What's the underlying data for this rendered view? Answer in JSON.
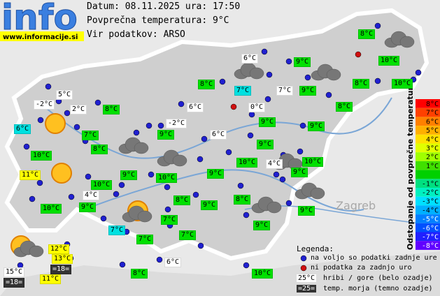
{
  "header": {
    "date_line": "Datum: 08.11.2025 ura: 17:50",
    "avg_line": "Povprečna temperatura: 9°C",
    "source_line": "Vir podatkov: ARSO"
  },
  "logo": {
    "text": "info",
    "url": "www.informacije.si"
  },
  "map_labels": [
    "Zagreb"
  ],
  "stations": [
    {
      "text": "8°C",
      "bg": "#00e000"
    },
    {
      "text": "6°C",
      "bg": "#ffffff"
    },
    {
      "text": "9°C",
      "bg": "#00e000"
    },
    {
      "text": "10°C",
      "bg": "#00e000"
    },
    {
      "text": "8°C",
      "bg": "#00e000"
    },
    {
      "text": "7°C",
      "bg": "#00e0e0"
    },
    {
      "text": "7°C",
      "bg": "#ffffff"
    },
    {
      "text": "9°C",
      "bg": "#00e000"
    },
    {
      "text": "8°C",
      "bg": "#00e000"
    },
    {
      "text": "10°C",
      "bg": "#00e000"
    },
    {
      "text": "5°C",
      "bg": "#ffffff"
    },
    {
      "text": "-2°C",
      "bg": "#ffffff"
    },
    {
      "text": "2°C",
      "bg": "#ffffff"
    },
    {
      "text": "8°C",
      "bg": "#00e000"
    },
    {
      "text": "6°C",
      "bg": "#ffffff"
    },
    {
      "text": "0°C",
      "bg": "#ffffff"
    },
    {
      "text": "8°C",
      "bg": "#00e000"
    },
    {
      "text": "6°C",
      "bg": "#00e0e0"
    },
    {
      "text": "-2°C",
      "bg": "#ffffff"
    },
    {
      "text": "9°C",
      "bg": "#00e000"
    },
    {
      "text": "9°C",
      "bg": "#00e000"
    },
    {
      "text": "7°C",
      "bg": "#00e000"
    },
    {
      "text": "9°C",
      "bg": "#00e000"
    },
    {
      "text": "6°C",
      "bg": "#ffffff"
    },
    {
      "text": "8°C",
      "bg": "#00e000"
    },
    {
      "text": "9°C",
      "bg": "#00e000"
    },
    {
      "text": "10°C",
      "bg": "#00e000"
    },
    {
      "text": "10°C",
      "bg": "#00e000"
    },
    {
      "text": "4°C",
      "bg": "#ffffff"
    },
    {
      "text": "10°C",
      "bg": "#00e000"
    },
    {
      "text": "11°C",
      "bg": "#ffff00"
    },
    {
      "text": "9°C",
      "bg": "#00e000"
    },
    {
      "text": "10°C",
      "bg": "#00e000"
    },
    {
      "text": "9°C",
      "bg": "#00e000"
    },
    {
      "text": "9°C",
      "bg": "#00e000"
    },
    {
      "text": "10°C",
      "bg": "#00e000"
    },
    {
      "text": "4°C",
      "bg": "#ffffff"
    },
    {
      "text": "8°C",
      "bg": "#00e000"
    },
    {
      "text": "8°C",
      "bg": "#00e000"
    },
    {
      "text": "10°C",
      "bg": "#00e000"
    },
    {
      "text": "9°C",
      "bg": "#00e000"
    },
    {
      "text": "9°C",
      "bg": "#00e000"
    },
    {
      "text": "9°C",
      "bg": "#00e000"
    },
    {
      "text": "7°C",
      "bg": "#00e000"
    },
    {
      "text": "7°C",
      "bg": "#00e0e0"
    },
    {
      "text": "7°C",
      "bg": "#00e000"
    },
    {
      "text": "7°C",
      "bg": "#00e000"
    },
    {
      "text": "9°C",
      "bg": "#00e000"
    },
    {
      "text": "12°C",
      "bg": "#ffff00"
    },
    {
      "text": "13°C",
      "bg": "#ffff00"
    },
    {
      "text": "=18=",
      "bg": "#333333"
    },
    {
      "text": "6°C",
      "bg": "#ffffff"
    },
    {
      "text": "15°C",
      "bg": "#ffffff"
    },
    {
      "text": "=18=",
      "bg": "#333333"
    },
    {
      "text": "11°C",
      "bg": "#ffff00"
    },
    {
      "text": "8°C",
      "bg": "#00e000"
    },
    {
      "text": "10°C",
      "bg": "#00e000"
    }
  ],
  "scale": {
    "title": "Odstopanje od povprečne temperature:",
    "steps": [
      {
        "label": "8°C",
        "color": "#ff0000"
      },
      {
        "label": "7°C",
        "color": "#ff4000"
      },
      {
        "label": "6°C",
        "color": "#ff8000"
      },
      {
        "label": "5°C",
        "color": "#ffb000"
      },
      {
        "label": "4°C",
        "color": "#ffe000"
      },
      {
        "label": "3°C",
        "color": "#e0ff00"
      },
      {
        "label": "2°C",
        "color": "#a0ff00"
      },
      {
        "label": "1°C",
        "color": "#40e000"
      },
      {
        "label": null,
        "color": "#00d000"
      },
      {
        "label": "-1°C",
        "color": "#00e080"
      },
      {
        "label": "-2°C",
        "color": "#00f0c0"
      },
      {
        "label": "-3°C",
        "color": "#00e0ff"
      },
      {
        "label": "-4°C",
        "color": "#00b0ff"
      },
      {
        "label": "-5°C",
        "color": "#0080ff"
      },
      {
        "label": "-6°C",
        "color": "#0050ff"
      },
      {
        "label": "-7°C",
        "color": "#2020ff"
      },
      {
        "label": "-8°C",
        "color": "#6000ff"
      }
    ]
  },
  "legend": {
    "title": "Legenda:",
    "available": "na voljo so podatki zadnje ure",
    "unavailable": "ni podatka za zadnjo uro",
    "mountain_sample": "25°C",
    "mountain_text": "hribi / gore (belo ozadje)",
    "sea_sample": "=25=",
    "sea_text": "temp. morja (temno ozadje)"
  }
}
